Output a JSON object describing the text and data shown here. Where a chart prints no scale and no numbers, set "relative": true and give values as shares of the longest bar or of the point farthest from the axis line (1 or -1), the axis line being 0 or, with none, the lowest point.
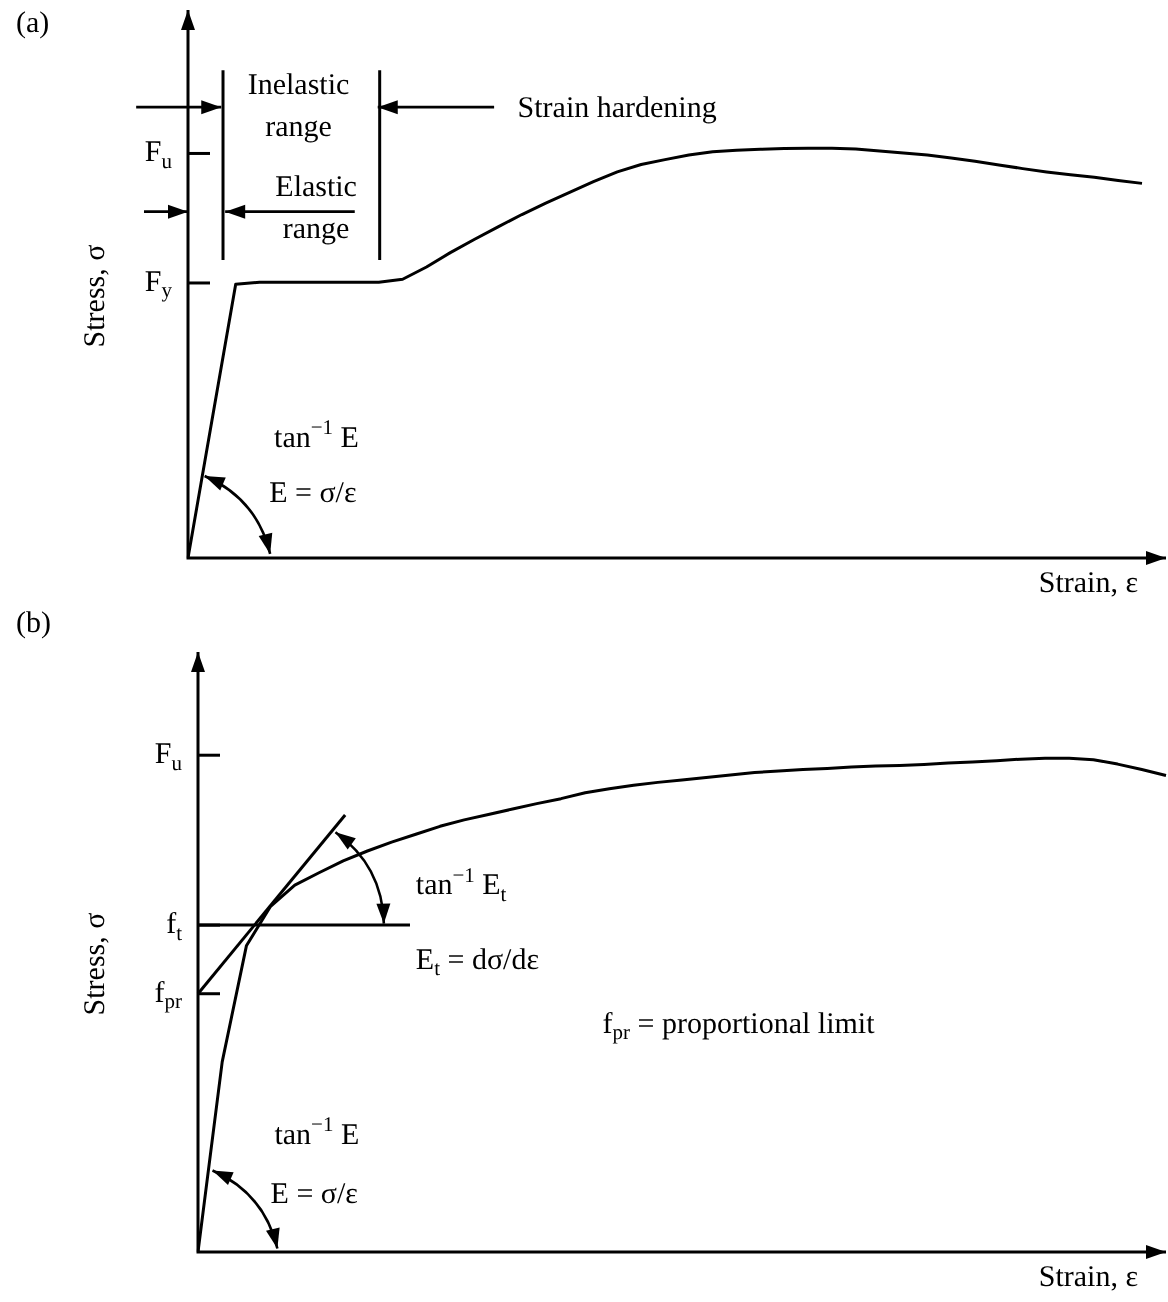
{
  "chart_data": [
    {
      "type": "line",
      "title": "(a)",
      "xlabel": "Strain, ε",
      "ylabel": "Stress, σ",
      "relative": true,
      "categories": [
        null,
        null,
        null,
        null,
        null,
        null,
        null,
        null,
        null,
        null,
        null,
        null,
        null,
        null,
        null,
        null,
        null,
        null,
        null,
        null,
        null,
        null,
        null,
        null,
        null,
        null,
        null,
        null,
        null,
        null,
        null,
        null,
        null,
        null,
        null,
        null,
        null,
        null,
        null,
        null,
        null
      ],
      "series": [
        {
          "color": "#000000",
          "values": [
            0,
            0.334,
            0.668,
            0.673,
            0.673,
            0.673,
            0.673,
            0.673,
            0.673,
            0.68,
            0.71,
            0.745,
            0.777,
            0.808,
            0.838,
            0.866,
            0.892,
            0.918,
            0.942,
            0.96,
            0.972,
            0.983,
            0.991,
            0.995,
            0.997,
            0.999,
            1,
            1,
            0.998,
            0.993,
            0.988,
            0.983,
            0.976,
            0.968,
            0.959,
            0.95,
            0.942,
            0.935,
            0.929,
            0.921,
            0.914
          ]
        }
      ],
      "annotations": [
        "F$_{u}$",
        "F$_{y}$",
        "Inelastic range",
        "Elastic range",
        "Strain hardening",
        "tan$^{−1}$ E",
        "E = σ/ε"
      ]
    },
    {
      "type": "line",
      "title": "(b)",
      "xlabel": "Strain, ε",
      "ylabel": "Stress, σ",
      "relative": true,
      "categories": [
        null,
        null,
        null,
        null,
        null,
        null,
        null,
        null,
        null,
        null,
        null,
        null,
        null,
        null,
        null,
        null,
        null,
        null,
        null,
        null,
        null,
        null,
        null,
        null,
        null,
        null,
        null,
        null,
        null,
        null,
        null,
        null,
        null,
        null,
        null,
        null,
        null,
        null,
        null,
        null,
        null
      ],
      "series": [
        {
          "color": "#000000",
          "values": [
            0,
            0.385,
            0.62,
            0.7,
            0.743,
            0.768,
            0.792,
            0.812,
            0.83,
            0.846,
            0.862,
            0.875,
            0.886,
            0.897,
            0.908,
            0.918,
            0.93,
            0.938,
            0.945,
            0.951,
            0.956,
            0.961,
            0.966,
            0.971,
            0.974,
            0.977,
            0.979,
            0.982,
            0.984,
            0.985,
            0.987,
            0.99,
            0.992,
            0.995,
            0.998,
            1,
            1,
            0.997,
            0.988,
            0.977,
            0.965
          ]
        }
      ],
      "annotations": [
        "F$_{u}$",
        "f$_{t}$",
        "f$_{pr}$",
        "tan$^{−1}$ E$_{t}$",
        "E$_{t}$ = dσ/dε",
        "f$_{pr}$ = proportional limit",
        "tan$^{−1}$ E",
        "E = σ/ε"
      ]
    }
  ]
}
